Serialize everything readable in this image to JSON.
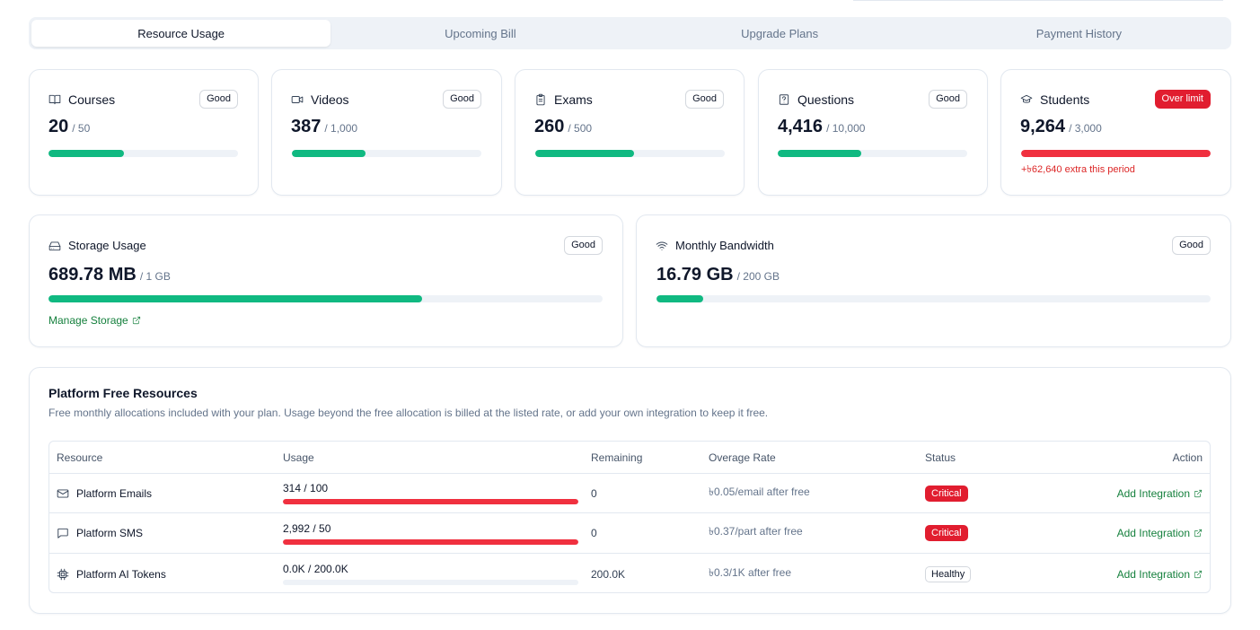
{
  "tabs": [
    {
      "label": "Resource Usage",
      "active": true
    },
    {
      "label": "Upcoming Bill",
      "active": false
    },
    {
      "label": "Upgrade Plans",
      "active": false
    },
    {
      "label": "Payment History",
      "active": false
    }
  ],
  "metrics": [
    {
      "title": "Courses",
      "icon": "book-icon",
      "badge": "Good",
      "value": "20",
      "limit": "/ 50",
      "progress": 0.4,
      "status": "good"
    },
    {
      "title": "Videos",
      "icon": "video-icon",
      "badge": "Good",
      "value": "387",
      "limit": "/ 1,000",
      "progress": 0.387,
      "status": "good"
    },
    {
      "title": "Exams",
      "icon": "clipboard-icon",
      "badge": "Good",
      "value": "260",
      "limit": "/ 500",
      "progress": 0.52,
      "status": "good"
    },
    {
      "title": "Questions",
      "icon": "question-icon",
      "badge": "Good",
      "value": "4,416",
      "limit": "/ 10,000",
      "progress": 0.4416,
      "status": "good"
    },
    {
      "title": "Students",
      "icon": "graduation-cap-icon",
      "badge": "Over limit",
      "value": "9,264",
      "limit": "/ 3,000",
      "progress": 1.0,
      "status": "over",
      "extra": "+৳62,640 extra this period"
    }
  ],
  "storage": {
    "title": "Storage Usage",
    "icon": "hard-drive-icon",
    "badge": "Good",
    "value": "689.78 MB",
    "limit": "/ 1 GB",
    "progress": 0.674,
    "link": "Manage Storage"
  },
  "bandwidth": {
    "title": "Monthly Bandwidth",
    "icon": "wifi-icon",
    "badge": "Good",
    "value": "16.79 GB",
    "limit": "/ 200 GB",
    "progress": 0.084
  },
  "platform": {
    "title": "Platform Free Resources",
    "subtitle": "Free monthly allocations included with your plan. Usage beyond the free allocation is billed at the listed rate, or add your own integration to keep it free.",
    "headers": {
      "resource": "Resource",
      "usage": "Usage",
      "remaining": "Remaining",
      "rate": "Overage Rate",
      "status": "Status",
      "action": "Action"
    },
    "rows": [
      {
        "name": "Platform Emails",
        "icon": "mail-icon",
        "usage": "314 / 100",
        "progress": 1.0,
        "remaining": "0",
        "rate": "৳0.05/email after free",
        "status": "Critical",
        "status_type": "critical",
        "action": "Add Integration"
      },
      {
        "name": "Platform SMS",
        "icon": "message-icon",
        "usage": "2,992 / 50",
        "progress": 1.0,
        "remaining": "0",
        "rate": "৳0.37/part after free",
        "status": "Critical",
        "status_type": "critical",
        "action": "Add Integration"
      },
      {
        "name": "Platform AI Tokens",
        "icon": "cpu-icon",
        "usage": "0.0K / 200.0K",
        "progress": 0.0,
        "remaining": "200.0K",
        "rate": "৳0.3/1K after free",
        "status": "Healthy",
        "status_type": "healthy",
        "action": "Add Integration"
      }
    ]
  },
  "colors": {
    "good": "#10b981",
    "over": "#f0303f",
    "critical": "#e11d2f",
    "link": "#15803d"
  }
}
